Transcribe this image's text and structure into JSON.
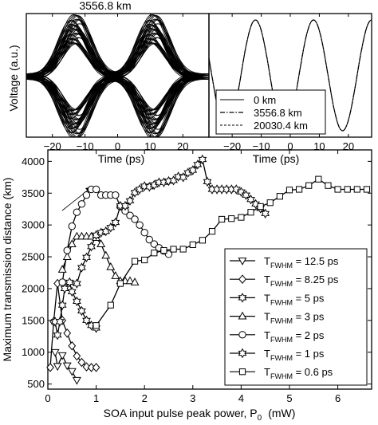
{
  "chart_data": [
    {
      "type": "line",
      "panel": "eye diagram",
      "title": "3556.8 km",
      "xlabel": "Time (ps)",
      "ylabel": "Voltage (a.u.)",
      "xlim": [
        -28,
        28
      ],
      "xticks": [
        -20,
        -10,
        0,
        10,
        20
      ],
      "pulse_centers_ps": [
        -13,
        11
      ],
      "pulse_fwhm_ps": 10,
      "grid": false
    },
    {
      "type": "line",
      "panel": "pulse shape",
      "xlabel": "Time (ps)",
      "xlim": [
        -28,
        28
      ],
      "xticks": [
        -20,
        -10,
        0,
        10,
        20
      ],
      "pulse_centers_ps": [
        -12,
        8
      ],
      "legend": [
        "0 km",
        "3556.8 km",
        "20030.4 km"
      ],
      "legend_position": "bottom",
      "grid": false
    },
    {
      "type": "line",
      "panel": "main",
      "xlabel": "SOA input pulse peak power, P",
      "xlabel_sub": "0",
      "xlabel_unit": "(mW)",
      "ylabel": "Maximum transmission distance  (km)",
      "xlim": [
        0,
        6.7
      ],
      "ylim": [
        420,
        4180
      ],
      "xticks": [
        0,
        1,
        2,
        3,
        4,
        5,
        6
      ],
      "yticks": [
        500,
        1000,
        1500,
        2000,
        2500,
        3000,
        3500,
        4000
      ],
      "legend_position": "bottom-right",
      "grid": false,
      "series": [
        {
          "name": "12.5 ps",
          "marker": "triangle-down",
          "x": [
            0.15,
            0.2,
            0.3,
            0.4,
            0.5,
            0.6
          ],
          "y": [
            1000,
            780,
            950,
            790,
            700,
            560
          ]
        },
        {
          "name": "8.25 ps",
          "marker": "diamond",
          "x": [
            0.05,
            0.12,
            0.2,
            0.3,
            0.4,
            0.5,
            0.6,
            0.7,
            0.8,
            0.9,
            1.0
          ],
          "y": [
            760,
            1480,
            2080,
            1500,
            1300,
            1100,
            940,
            840,
            770,
            760,
            760
          ]
        },
        {
          "name": "5 ps",
          "marker": "hexagram",
          "x": [
            0.15,
            0.2,
            0.25,
            0.3,
            0.35,
            0.45,
            0.5,
            0.6,
            0.7,
            0.8,
            0.9,
            1.0
          ],
          "y": [
            1480,
            1270,
            1480,
            1740,
            2000,
            2100,
            1950,
            1800,
            1650,
            1500,
            1420,
            1380
          ]
        },
        {
          "name": "3 ps",
          "marker": "triangle-up",
          "x": [
            0.3,
            0.4,
            0.5,
            0.6,
            0.7,
            0.8,
            0.9,
            1.0,
            1.1,
            1.2,
            1.3,
            1.4,
            1.5,
            1.6,
            1.7,
            1.8
          ],
          "y": [
            2300,
            2500,
            2700,
            2820,
            2820,
            2820,
            2820,
            2800,
            2700,
            2520,
            2340,
            2200,
            2120,
            2120,
            2120,
            2100
          ]
        },
        {
          "name": "2 ps",
          "marker": "circle",
          "x": [
            0.3,
            0.4,
            0.5,
            0.6,
            0.7,
            0.8,
            0.9,
            1.0,
            1.1,
            1.2,
            1.3,
            1.4,
            1.5,
            1.6,
            1.7,
            1.8,
            1.9,
            2.0,
            2.1,
            2.2,
            2.3,
            2.4,
            2.5
          ],
          "y": [
            2100,
            2600,
            2980,
            3200,
            3330,
            3470,
            3560,
            3560,
            3470,
            3470,
            3470,
            3470,
            3290,
            3220,
            3150,
            3090,
            3000,
            2880,
            2770,
            2700,
            2640,
            2590,
            2540
          ]
        },
        {
          "name": "1 ps",
          "marker": "hexagram",
          "x": [
            0.6,
            0.7,
            0.8,
            0.9,
            1.0,
            1.1,
            1.2,
            1.3,
            1.4,
            1.5,
            1.6,
            1.7,
            1.8,
            1.9,
            2.0,
            2.1,
            2.2,
            2.3,
            2.4,
            2.5,
            2.6,
            2.7,
            2.8,
            2.9,
            3.0,
            3.1,
            3.2,
            3.3,
            3.4,
            3.5,
            3.6,
            3.7,
            3.8,
            3.9,
            4.0,
            4.1,
            4.2,
            4.3,
            4.4,
            4.5
          ],
          "y": [
            2080,
            2330,
            2490,
            2660,
            2840,
            2880,
            2900,
            2960,
            3040,
            3300,
            3300,
            3380,
            3510,
            3560,
            3610,
            3600,
            3630,
            3670,
            3670,
            3690,
            3700,
            3760,
            3750,
            3820,
            3860,
            3950,
            4030,
            3680,
            3560,
            3560,
            3560,
            3560,
            3560,
            3560,
            3520,
            3470,
            3400,
            3330,
            3260,
            3180
          ]
        },
        {
          "name": "0.6 ps",
          "marker": "square",
          "x": [
            1.0,
            1.3,
            1.5,
            1.8,
            2.0,
            2.2,
            2.4,
            2.6,
            2.8,
            3.0,
            3.2,
            3.4,
            3.6,
            3.8,
            4.0,
            4.2,
            4.4,
            4.6,
            4.8,
            5.0,
            5.2,
            5.4,
            5.6,
            5.8,
            6.0,
            6.2,
            6.4,
            6.6
          ],
          "y": [
            1420,
            1740,
            2080,
            2430,
            2450,
            2560,
            2600,
            2620,
            2620,
            2690,
            2760,
            2900,
            3090,
            3100,
            3120,
            3200,
            3290,
            3350,
            3450,
            3550,
            3560,
            3620,
            3720,
            3620,
            3560,
            3560,
            3560,
            3560
          ]
        }
      ]
    }
  ],
  "legend_prefix": "T",
  "legend_sub": "FWHM",
  "legend_labels": [
    "12.5 ps",
    "8.25 ps",
    "5 ps",
    "3 ps",
    "2 ps",
    "1 ps",
    "0.6 ps"
  ]
}
